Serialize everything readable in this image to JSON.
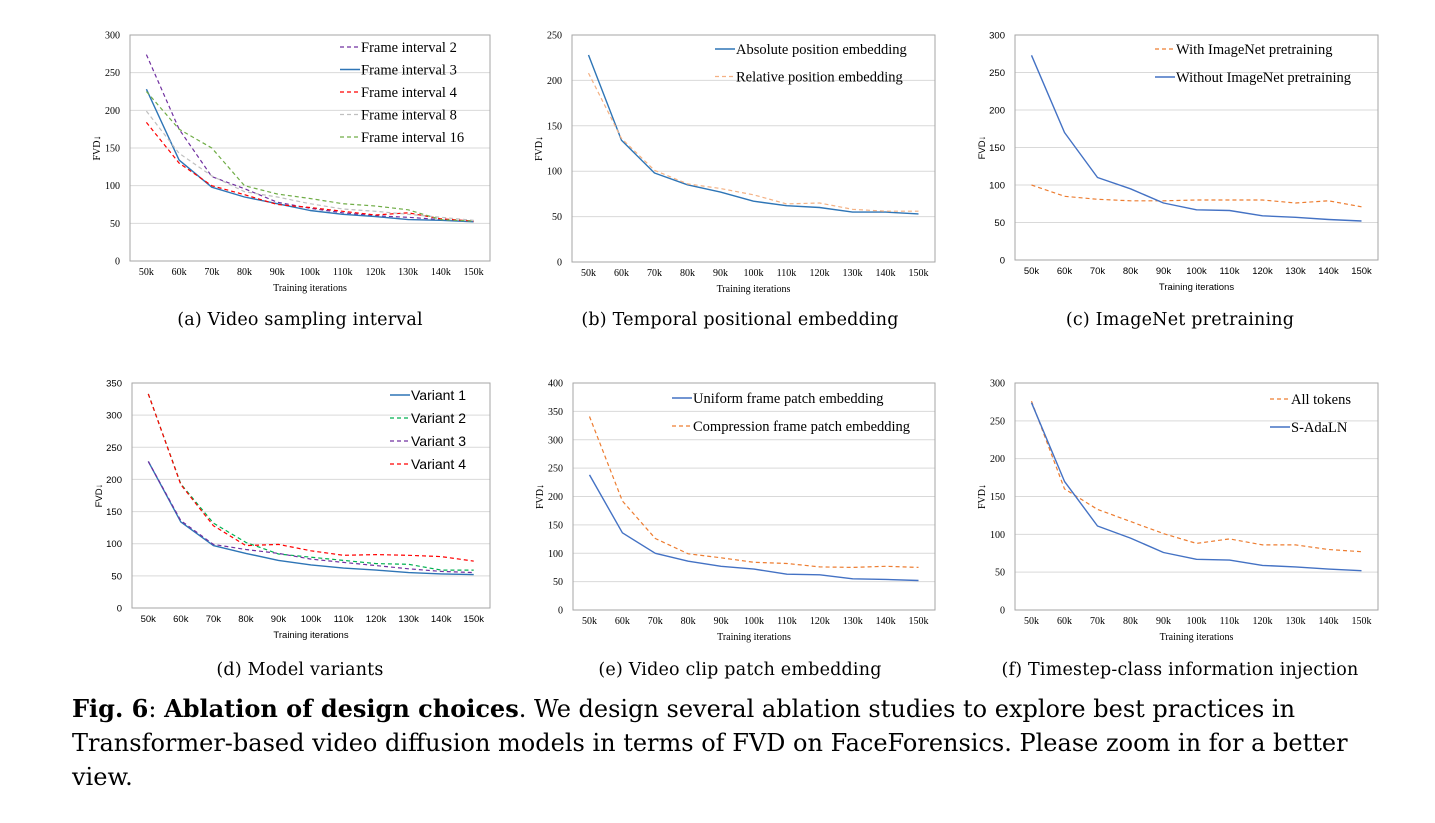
{
  "figure": {
    "caption_label": "Fig. 6",
    "caption_sep": ":",
    "caption_bold": "Ablation of design choices",
    "caption_text": ". We design several ablation studies to explore best practices in Transformer-based video diffusion models in terms of FVD on FaceForensics. Please zoom in for a better view."
  },
  "chart_data": [
    {
      "id": "a",
      "type": "line",
      "subcaption": "(a) Video sampling interval",
      "xlabel": "Training iterations",
      "ylabel": "FVD↓",
      "categories": [
        "50k",
        "60k",
        "70k",
        "80k",
        "90k",
        "100k",
        "110k",
        "120k",
        "130k",
        "140k",
        "150k"
      ],
      "ylim": [
        0,
        300
      ],
      "yticks": [
        0,
        50,
        100,
        150,
        200,
        250,
        300
      ],
      "grid": true,
      "legend_position": "top-right",
      "series": [
        {
          "name": "Frame interval 2",
          "color": "#7030A0",
          "dashed": true,
          "values": [
            274,
            175,
            112,
            96,
            78,
            70,
            64,
            60,
            58,
            55,
            53
          ]
        },
        {
          "name": "Frame interval 3",
          "color": "#2E75B6",
          "dashed": false,
          "values": [
            228,
            134,
            98,
            85,
            76,
            67,
            62,
            59,
            55,
            54,
            52
          ]
        },
        {
          "name": "Frame interval 4",
          "color": "#FF0000",
          "dashed": true,
          "values": [
            184,
            130,
            100,
            88,
            75,
            71,
            66,
            61,
            64,
            56,
            53
          ]
        },
        {
          "name": "Frame interval 8",
          "color": "#BFBFBF",
          "dashed": true,
          "values": [
            199,
            143,
            113,
            92,
            85,
            76,
            69,
            66,
            62,
            58,
            54
          ]
        },
        {
          "name": "Frame interval 16",
          "color": "#70AD47",
          "dashed": true,
          "values": [
            225,
            175,
            150,
            100,
            89,
            83,
            76,
            73,
            68,
            55,
            53
          ]
        }
      ]
    },
    {
      "id": "b",
      "type": "line",
      "subcaption": "(b) Temporal positional embedding",
      "xlabel": "Training iterations",
      "ylabel": "FVD↓",
      "categories": [
        "50k",
        "60k",
        "70k",
        "80k",
        "90k",
        "100k",
        "110k",
        "120k",
        "130k",
        "140k",
        "150k"
      ],
      "ylim": [
        0,
        250
      ],
      "yticks": [
        0,
        50,
        100,
        150,
        200,
        250
      ],
      "grid": true,
      "legend_position": "top-right",
      "series": [
        {
          "name": "Absolute position embedding",
          "color": "#2E75B6",
          "dashed": false,
          "values": [
            228,
            134,
            98,
            85,
            77,
            67,
            62,
            60,
            55,
            55,
            53
          ]
        },
        {
          "name": "Relative position embedding",
          "color": "#F4B183",
          "dashed": true,
          "values": [
            208,
            136,
            101,
            86,
            81,
            74,
            64,
            65,
            58,
            56,
            56
          ]
        }
      ]
    },
    {
      "id": "c",
      "type": "line",
      "subcaption": "(c) ImageNet pretraining",
      "xlabel": "Training iterations",
      "ylabel": "FVD↓",
      "categories": [
        "50k",
        "60k",
        "70k",
        "80k",
        "90k",
        "100k",
        "110k",
        "120k",
        "130k",
        "140k",
        "150k"
      ],
      "ylim": [
        0,
        300
      ],
      "yticks": [
        0,
        50,
        100,
        150,
        200,
        250,
        300
      ],
      "grid": true,
      "legend_position": "top-right",
      "series": [
        {
          "name": "With ImageNet pretraining",
          "color": "#ED7D31",
          "dashed": true,
          "values": [
            100,
            85,
            81,
            79,
            79,
            80,
            80,
            80,
            76,
            79,
            71
          ]
        },
        {
          "name": "Without ImageNet pretraining",
          "color": "#4472C4",
          "dashed": false,
          "values": [
            273,
            170,
            110,
            95,
            76,
            67,
            66,
            59,
            57,
            54,
            52
          ]
        }
      ]
    },
    {
      "id": "d",
      "type": "line",
      "subcaption": "(d) Model variants",
      "xlabel": "Training iterations",
      "ylabel": "FVD↓",
      "categories": [
        "50k",
        "60k",
        "70k",
        "80k",
        "90k",
        "100k",
        "110k",
        "120k",
        "130k",
        "140k",
        "150k"
      ],
      "ylim": [
        0,
        350
      ],
      "yticks": [
        0,
        50,
        100,
        150,
        200,
        250,
        300,
        350
      ],
      "grid": true,
      "legend_position": "top-right",
      "series": [
        {
          "name": "Variant 1",
          "color": "#2E75B6",
          "dashed": false,
          "values": [
            228,
            134,
            97,
            85,
            74,
            67,
            62,
            59,
            55,
            53,
            52
          ]
        },
        {
          "name": "Variant 2",
          "color": "#00B050",
          "dashed": true,
          "values": [
            333,
            193,
            132,
            102,
            84,
            79,
            74,
            69,
            68,
            59,
            59
          ]
        },
        {
          "name": "Variant 3",
          "color": "#7030A0",
          "dashed": true,
          "values": [
            228,
            136,
            99,
            91,
            85,
            76,
            71,
            66,
            61,
            57,
            55
          ]
        },
        {
          "name": "Variant 4",
          "color": "#FF0000",
          "dashed": true,
          "values": [
            333,
            192,
            128,
            97,
            99,
            89,
            82,
            83,
            82,
            80,
            73
          ]
        }
      ]
    },
    {
      "id": "e",
      "type": "line",
      "subcaption": "(e) Video clip patch embedding",
      "xlabel": "Training iterations",
      "ylabel": "FVD↓",
      "categories": [
        "50k",
        "60k",
        "70k",
        "80k",
        "90k",
        "100k",
        "110k",
        "120k",
        "130k",
        "140k",
        "150k"
      ],
      "ylim": [
        0,
        400
      ],
      "yticks": [
        0,
        50,
        100,
        150,
        200,
        250,
        300,
        350,
        400
      ],
      "grid": true,
      "legend_position": "top-right",
      "series": [
        {
          "name": "Uniform frame patch embedding",
          "color": "#4472C4",
          "dashed": false,
          "values": [
            238,
            136,
            100,
            86,
            77,
            72,
            63,
            62,
            55,
            54,
            52
          ]
        },
        {
          "name": "Compression frame patch embedding",
          "color": "#ED7D31",
          "dashed": true,
          "values": [
            341,
            192,
            126,
            99,
            92,
            84,
            82,
            76,
            75,
            77,
            75
          ]
        }
      ]
    },
    {
      "id": "f",
      "type": "line",
      "subcaption": "(f) Timestep-class information injection",
      "xlabel": "Training iterations",
      "ylabel": "FVD↓",
      "categories": [
        "50k",
        "60k",
        "70k",
        "80k",
        "90k",
        "100k",
        "110k",
        "120k",
        "130k",
        "140k",
        "150k"
      ],
      "ylim": [
        0,
        300
      ],
      "yticks": [
        0,
        50,
        100,
        150,
        200,
        250,
        300
      ],
      "grid": true,
      "legend_position": "top-right",
      "series": [
        {
          "name": "All tokens",
          "color": "#ED7D31",
          "dashed": true,
          "values": [
            276,
            160,
            133,
            117,
            101,
            88,
            94,
            86,
            86,
            80,
            77
          ]
        },
        {
          "name": "S-AdaLN",
          "color": "#4472C4",
          "dashed": false,
          "values": [
            274,
            170,
            111,
            95,
            76,
            67,
            66,
            59,
            57,
            54,
            52
          ]
        }
      ]
    }
  ]
}
